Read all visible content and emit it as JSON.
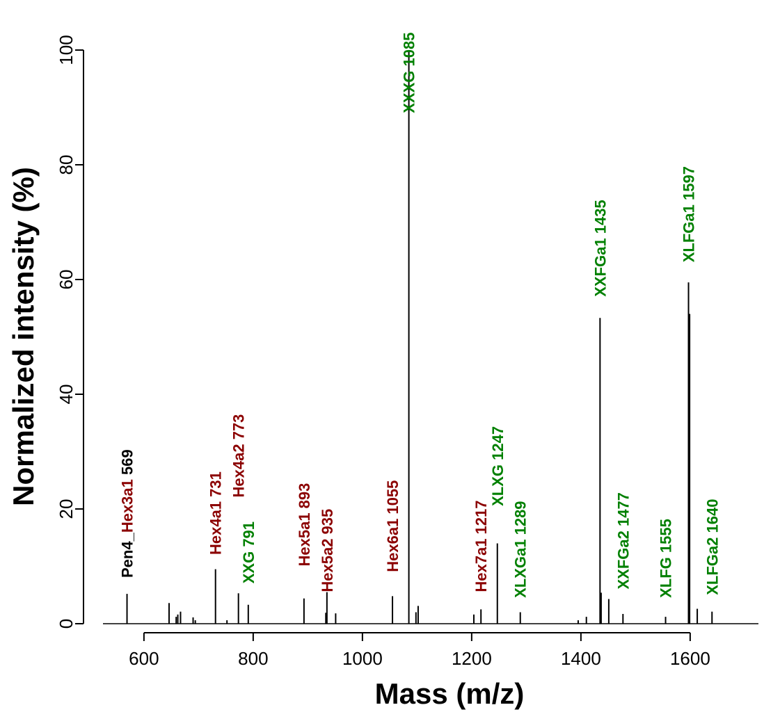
{
  "chart_data": {
    "type": "bar",
    "xlabel": "Mass (m/z)",
    "ylabel": "Normalized intensity (%)",
    "xlim": [
      525,
      1725
    ],
    "ylim": [
      0,
      100
    ],
    "xticks": [
      600,
      800,
      1000,
      1200,
      1400,
      1600
    ],
    "yticks": [
      0,
      20,
      40,
      60,
      80,
      100
    ],
    "grid": false,
    "colors": {
      "black": "#000000",
      "hexose": "#8b0000",
      "xyloglucan": "#008000"
    },
    "peaks": [
      {
        "x": 569,
        "y": 5.2
      },
      {
        "x": 646,
        "y": 3.6
      },
      {
        "x": 659,
        "y": 1.2
      },
      {
        "x": 662,
        "y": 1.6
      },
      {
        "x": 667,
        "y": 2.1
      },
      {
        "x": 690,
        "y": 1.1
      },
      {
        "x": 694,
        "y": 0.6
      },
      {
        "x": 731,
        "y": 9.5
      },
      {
        "x": 752,
        "y": 0.6
      },
      {
        "x": 773,
        "y": 5.3
      },
      {
        "x": 791,
        "y": 3.3
      },
      {
        "x": 893,
        "y": 4.4
      },
      {
        "x": 933,
        "y": 1.9
      },
      {
        "x": 935,
        "y": 5.5
      },
      {
        "x": 951,
        "y": 1.8
      },
      {
        "x": 1055,
        "y": 4.8
      },
      {
        "x": 1085,
        "y": 100
      },
      {
        "x": 1098,
        "y": 2.0
      },
      {
        "x": 1102,
        "y": 3.1
      },
      {
        "x": 1204,
        "y": 1.6
      },
      {
        "x": 1217,
        "y": 2.5
      },
      {
        "x": 1247,
        "y": 14.0
      },
      {
        "x": 1289,
        "y": 2.0
      },
      {
        "x": 1395,
        "y": 0.6
      },
      {
        "x": 1410,
        "y": 1.2
      },
      {
        "x": 1435,
        "y": 53.3
      },
      {
        "x": 1437,
        "y": 5.4
      },
      {
        "x": 1451,
        "y": 4.3
      },
      {
        "x": 1477,
        "y": 1.7
      },
      {
        "x": 1555,
        "y": 1.2
      },
      {
        "x": 1597,
        "y": 59.5
      },
      {
        "x": 1599,
        "y": 54.0
      },
      {
        "x": 1613,
        "y": 2.6
      },
      {
        "x": 1640,
        "y": 2.1
      }
    ],
    "annotations": [
      {
        "x": 569,
        "y": 8,
        "parts": [
          {
            "text": "Pen4_",
            "color": "black"
          },
          {
            "text": "Hex3a1",
            "color": "hexose"
          },
          {
            "text": " 569",
            "color": "black"
          }
        ]
      },
      {
        "x": 731,
        "y": 12,
        "parts": [
          {
            "text": "Hex4a1 731",
            "color": "hexose"
          }
        ]
      },
      {
        "x": 773,
        "y": 22,
        "parts": [
          {
            "text": "Hex4a2 773",
            "color": "hexose"
          }
        ]
      },
      {
        "x": 791,
        "y": 7,
        "parts": [
          {
            "text": "XXG 791",
            "color": "xyloglucan"
          }
        ]
      },
      {
        "x": 893,
        "y": 10,
        "parts": [
          {
            "text": "Hex5a1 893",
            "color": "hexose"
          }
        ]
      },
      {
        "x": 935,
        "y": 5.5,
        "parts": [
          {
            "text": "Hex5a2 935",
            "color": "hexose"
          }
        ]
      },
      {
        "x": 1055,
        "y": 9,
        "parts": [
          {
            "text": "Hex6a1 1055",
            "color": "hexose"
          }
        ]
      },
      {
        "x": 1085,
        "y": 89,
        "parts": [
          {
            "text": "XXXG 1085",
            "color": "xyloglucan"
          }
        ]
      },
      {
        "x": 1217,
        "y": 5.5,
        "parts": [
          {
            "text": "Hex7a1 1217",
            "color": "hexose"
          }
        ]
      },
      {
        "x": 1247,
        "y": 20.5,
        "parts": [
          {
            "text": "XLXG 1247",
            "color": "xyloglucan"
          }
        ]
      },
      {
        "x": 1289,
        "y": 4.5,
        "parts": [
          {
            "text": "XLXGa1 1289",
            "color": "xyloglucan"
          }
        ]
      },
      {
        "x": 1435,
        "y": 57,
        "parts": [
          {
            "text": "XXFGa1 1435",
            "color": "xyloglucan"
          }
        ]
      },
      {
        "x": 1477,
        "y": 6,
        "parts": [
          {
            "text": "XXFGa2 1477",
            "color": "xyloglucan"
          }
        ]
      },
      {
        "x": 1555,
        "y": 4.5,
        "parts": [
          {
            "text": "XLFG 1555",
            "color": "xyloglucan"
          }
        ]
      },
      {
        "x": 1597,
        "y": 63,
        "parts": [
          {
            "text": "XLFGa1 1597",
            "color": "xyloglucan"
          }
        ]
      },
      {
        "x": 1640,
        "y": 5,
        "parts": [
          {
            "text": "XLFGa2 1640",
            "color": "xyloglucan"
          }
        ]
      }
    ]
  }
}
